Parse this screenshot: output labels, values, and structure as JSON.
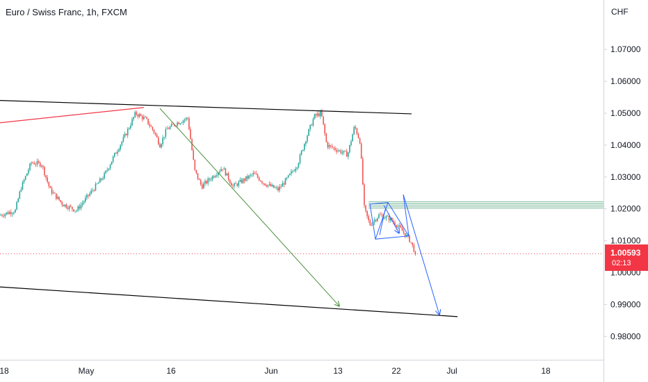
{
  "header": {
    "title": "Euro / Swiss Franc, 1h, FXCM"
  },
  "axis": {
    "currency": "CHF",
    "y_ticks": [
      "1.07000",
      "1.06000",
      "1.05000",
      "1.04000",
      "1.03000",
      "1.02000",
      "1.01000",
      "0.99000",
      "0.98000"
    ],
    "y_tick_values": [
      1.07,
      1.06,
      1.05,
      1.04,
      1.03,
      1.02,
      1.01,
      0.99,
      0.98
    ],
    "x_ticks": [
      "18",
      "May",
      "16",
      "Jun",
      "13",
      "22",
      "Jul",
      "18"
    ]
  },
  "price_label": {
    "price": "1.00593",
    "countdown": "02:13"
  },
  "colors": {
    "up": "#26a69a",
    "down": "#ef5350",
    "price_line": "#f23645",
    "channel": "#000000",
    "red_line": "#f23645",
    "green_arrow": "#4a8f3c",
    "blue_pattern": "#2962ff",
    "zone": "#3d8f6b"
  },
  "chart_data": {
    "type": "candlestick",
    "symbol": "Euro / Swiss Franc",
    "interval": "1h",
    "source": "FXCM",
    "ylim": [
      0.974,
      1.078
    ],
    "last_price": 1.00593,
    "close_path": [
      {
        "x": 0,
        "y": 1.018
      },
      {
        "x": 22,
        "y": 1.0195
      },
      {
        "x": 30,
        "y": 1.0265
      },
      {
        "x": 45,
        "y": 1.0345
      },
      {
        "x": 60,
        "y": 1.034
      },
      {
        "x": 72,
        "y": 1.026
      },
      {
        "x": 90,
        "y": 1.0215
      },
      {
        "x": 110,
        "y": 1.0195
      },
      {
        "x": 130,
        "y": 1.025
      },
      {
        "x": 150,
        "y": 1.0305
      },
      {
        "x": 165,
        "y": 1.037
      },
      {
        "x": 180,
        "y": 1.043
      },
      {
        "x": 195,
        "y": 1.05
      },
      {
        "x": 210,
        "y": 1.048
      },
      {
        "x": 222,
        "y": 1.044
      },
      {
        "x": 230,
        "y": 1.04
      },
      {
        "x": 240,
        "y": 1.045
      },
      {
        "x": 255,
        "y": 1.047
      },
      {
        "x": 270,
        "y": 1.0485
      },
      {
        "x": 280,
        "y": 1.032
      },
      {
        "x": 290,
        "y": 1.027
      },
      {
        "x": 305,
        "y": 1.03
      },
      {
        "x": 320,
        "y": 1.033
      },
      {
        "x": 335,
        "y": 1.027
      },
      {
        "x": 350,
        "y": 1.029
      },
      {
        "x": 365,
        "y": 1.031
      },
      {
        "x": 380,
        "y": 1.028
      },
      {
        "x": 400,
        "y": 1.026
      },
      {
        "x": 415,
        "y": 1.03
      },
      {
        "x": 428,
        "y": 1.034
      },
      {
        "x": 440,
        "y": 1.042
      },
      {
        "x": 452,
        "y": 1.049
      },
      {
        "x": 462,
        "y": 1.05
      },
      {
        "x": 470,
        "y": 1.04
      },
      {
        "x": 485,
        "y": 1.0385
      },
      {
        "x": 500,
        "y": 1.037
      },
      {
        "x": 510,
        "y": 1.046
      },
      {
        "x": 518,
        "y": 1.041
      },
      {
        "x": 524,
        "y": 1.02
      },
      {
        "x": 532,
        "y": 1.015
      },
      {
        "x": 545,
        "y": 1.018
      },
      {
        "x": 560,
        "y": 1.017
      },
      {
        "x": 575,
        "y": 1.014
      },
      {
        "x": 590,
        "y": 1.01
      },
      {
        "x": 598,
        "y": 1.0059
      }
    ],
    "drawings": [
      {
        "kind": "trendline",
        "color": "black",
        "from": {
          "x": 0,
          "y": 1.054
        },
        "to": {
          "x": 592,
          "y": 1.0498
        }
      },
      {
        "kind": "trendline",
        "color": "black",
        "from": {
          "x": 0,
          "y": 0.9955
        },
        "to": {
          "x": 658,
          "y": 0.9862
        }
      },
      {
        "kind": "trendline",
        "color": "red",
        "from": {
          "x": 0,
          "y": 1.047
        },
        "to": {
          "x": 207,
          "y": 1.0518
        }
      },
      {
        "kind": "arrow",
        "color": "green",
        "from": {
          "x": 230,
          "y": 1.0515
        },
        "to": {
          "x": 488,
          "y": 0.9895
        }
      },
      {
        "kind": "pattern",
        "color": "blue",
        "points": [
          {
            "x": 532,
            "y": 1.0215
          },
          {
            "x": 558,
            "y": 1.022
          },
          {
            "x": 540,
            "y": 1.0105
          },
          {
            "x": 588,
            "y": 1.0115
          },
          {
            "x": 580,
            "y": 1.0245
          },
          {
            "x": 632,
            "y": 0.9868
          }
        ]
      },
      {
        "kind": "zone",
        "color": "green",
        "from_x": 530,
        "y_top": 1.0222,
        "y_bottom": 1.0202
      }
    ]
  }
}
